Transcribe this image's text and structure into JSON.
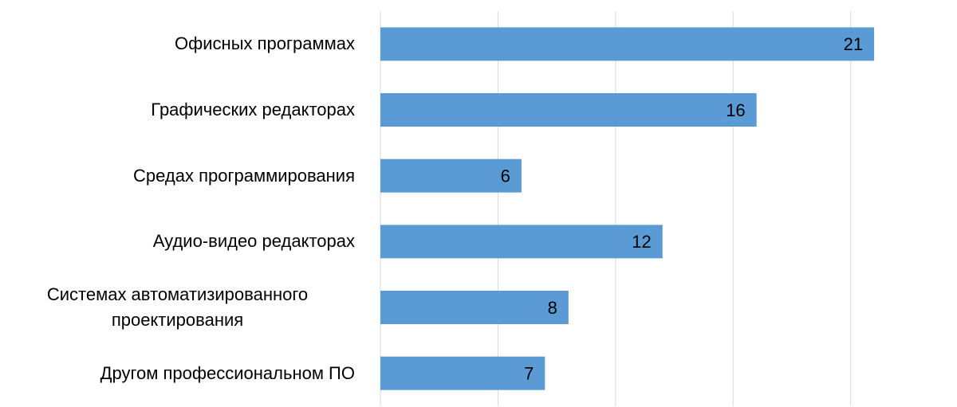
{
  "chart_data": {
    "type": "bar",
    "orientation": "horizontal",
    "categories": [
      "Офисных программах",
      "Графических редакторах",
      "Средах программирования",
      "Аудио-видео редакторах",
      "Системах автоматизированного проектирования",
      "Другом профессиональном ПО"
    ],
    "values": [
      21,
      16,
      6,
      12,
      8,
      7
    ],
    "color": "#5b9bd5",
    "xlim": [
      0,
      22
    ],
    "xticks": [
      0,
      5,
      10,
      15,
      20
    ],
    "grid": true
  }
}
